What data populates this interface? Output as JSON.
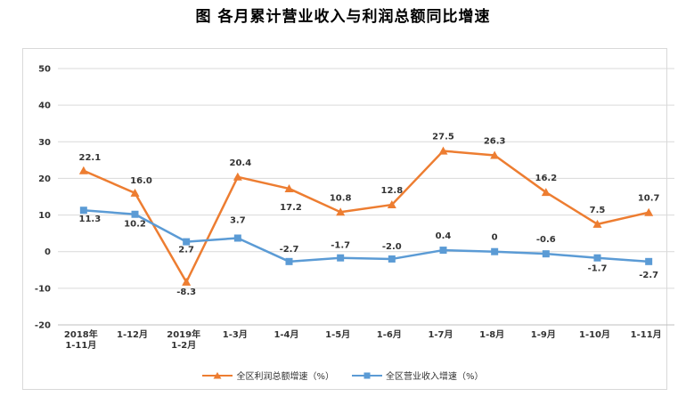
{
  "title": "图  各月累计营业收入与利润总额同比增速",
  "chart_data": {
    "type": "line",
    "categories": [
      [
        "2018年",
        "1-11月"
      ],
      [
        "1-12月"
      ],
      [
        "2019年",
        "1-2月"
      ],
      [
        "1-3月"
      ],
      [
        "1-4月"
      ],
      [
        "1-5月"
      ],
      [
        "1-6月"
      ],
      [
        "1-7月"
      ],
      [
        "1-8月"
      ],
      [
        "1-9月"
      ],
      [
        "1-10月"
      ],
      [
        "1-11月"
      ]
    ],
    "ylim": [
      -20,
      50
    ],
    "yticks": [
      -20,
      -10,
      0,
      10,
      20,
      30,
      40,
      50
    ],
    "grid": true,
    "legend_position": "bottom",
    "series": [
      {
        "name": "全区利润总额增速（%）",
        "color": "#ed7d31",
        "marker": "triangle",
        "values": [
          22.1,
          16.0,
          -8.3,
          20.4,
          17.2,
          10.8,
          12.8,
          27.5,
          26.3,
          16.2,
          7.5,
          10.7
        ],
        "labels": [
          "22.1",
          "16.0",
          "-8.3",
          "20.4",
          "17.2",
          "10.8",
          "12.8",
          "27.5",
          "26.3",
          "16.2",
          "7.5",
          "10.7"
        ]
      },
      {
        "name": "全区营业收入增速（%）",
        "color": "#5b9bd5",
        "marker": "square",
        "values": [
          11.3,
          10.2,
          2.7,
          3.7,
          -2.7,
          -1.7,
          -2.0,
          0.4,
          0,
          -0.6,
          -1.7,
          -2.7
        ],
        "labels": [
          "11.3",
          "10.2",
          "2.7",
          "3.7",
          "-2.7",
          "-1.7",
          "-2.0",
          "0.4",
          "0",
          "-0.6",
          "-1.7",
          "-2.7"
        ]
      }
    ]
  }
}
